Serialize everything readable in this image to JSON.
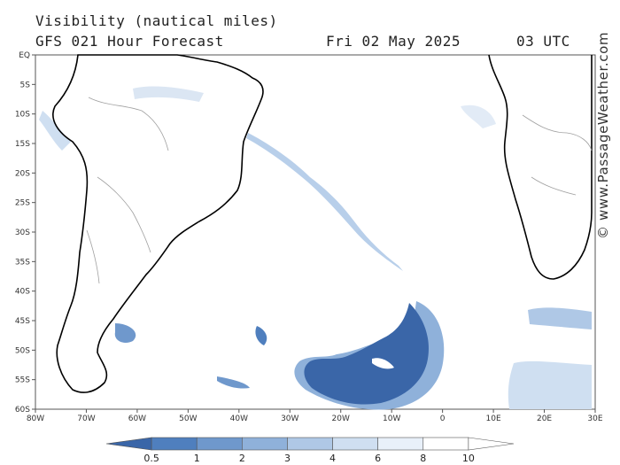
{
  "header": {
    "title": "Visibility (nautical miles)",
    "model_line": "GFS 021 Hour Forecast",
    "date": "Fri 02 May 2025",
    "time": "03 UTC"
  },
  "watermark": "© www.PassageWeather.com",
  "axes": {
    "lon_labels": [
      "80W",
      "70W",
      "60W",
      "50W",
      "40W",
      "30W",
      "20W",
      "10W",
      "0",
      "10E",
      "20E",
      "30E"
    ],
    "lat_labels": [
      "EQ",
      "5S",
      "10S",
      "15S",
      "20S",
      "25S",
      "30S",
      "35S",
      "40S",
      "45S",
      "50S",
      "55S",
      "60S"
    ]
  },
  "legend": {
    "labels": [
      "0.5",
      "1",
      "2",
      "3",
      "4",
      "6",
      "8",
      "10"
    ],
    "colors": [
      "#3a66a8",
      "#4f7fbe",
      "#6f98cc",
      "#8fb1da",
      "#afc8e6",
      "#cfdff1",
      "#e8f0f9",
      "#ffffff"
    ]
  },
  "colors": {
    "land_outline": "#000000",
    "borders": "#a0a0a0",
    "low_vis": "#3a66a8",
    "mid_vis": "#8fb1da",
    "light_vis": "#cfdff1"
  }
}
